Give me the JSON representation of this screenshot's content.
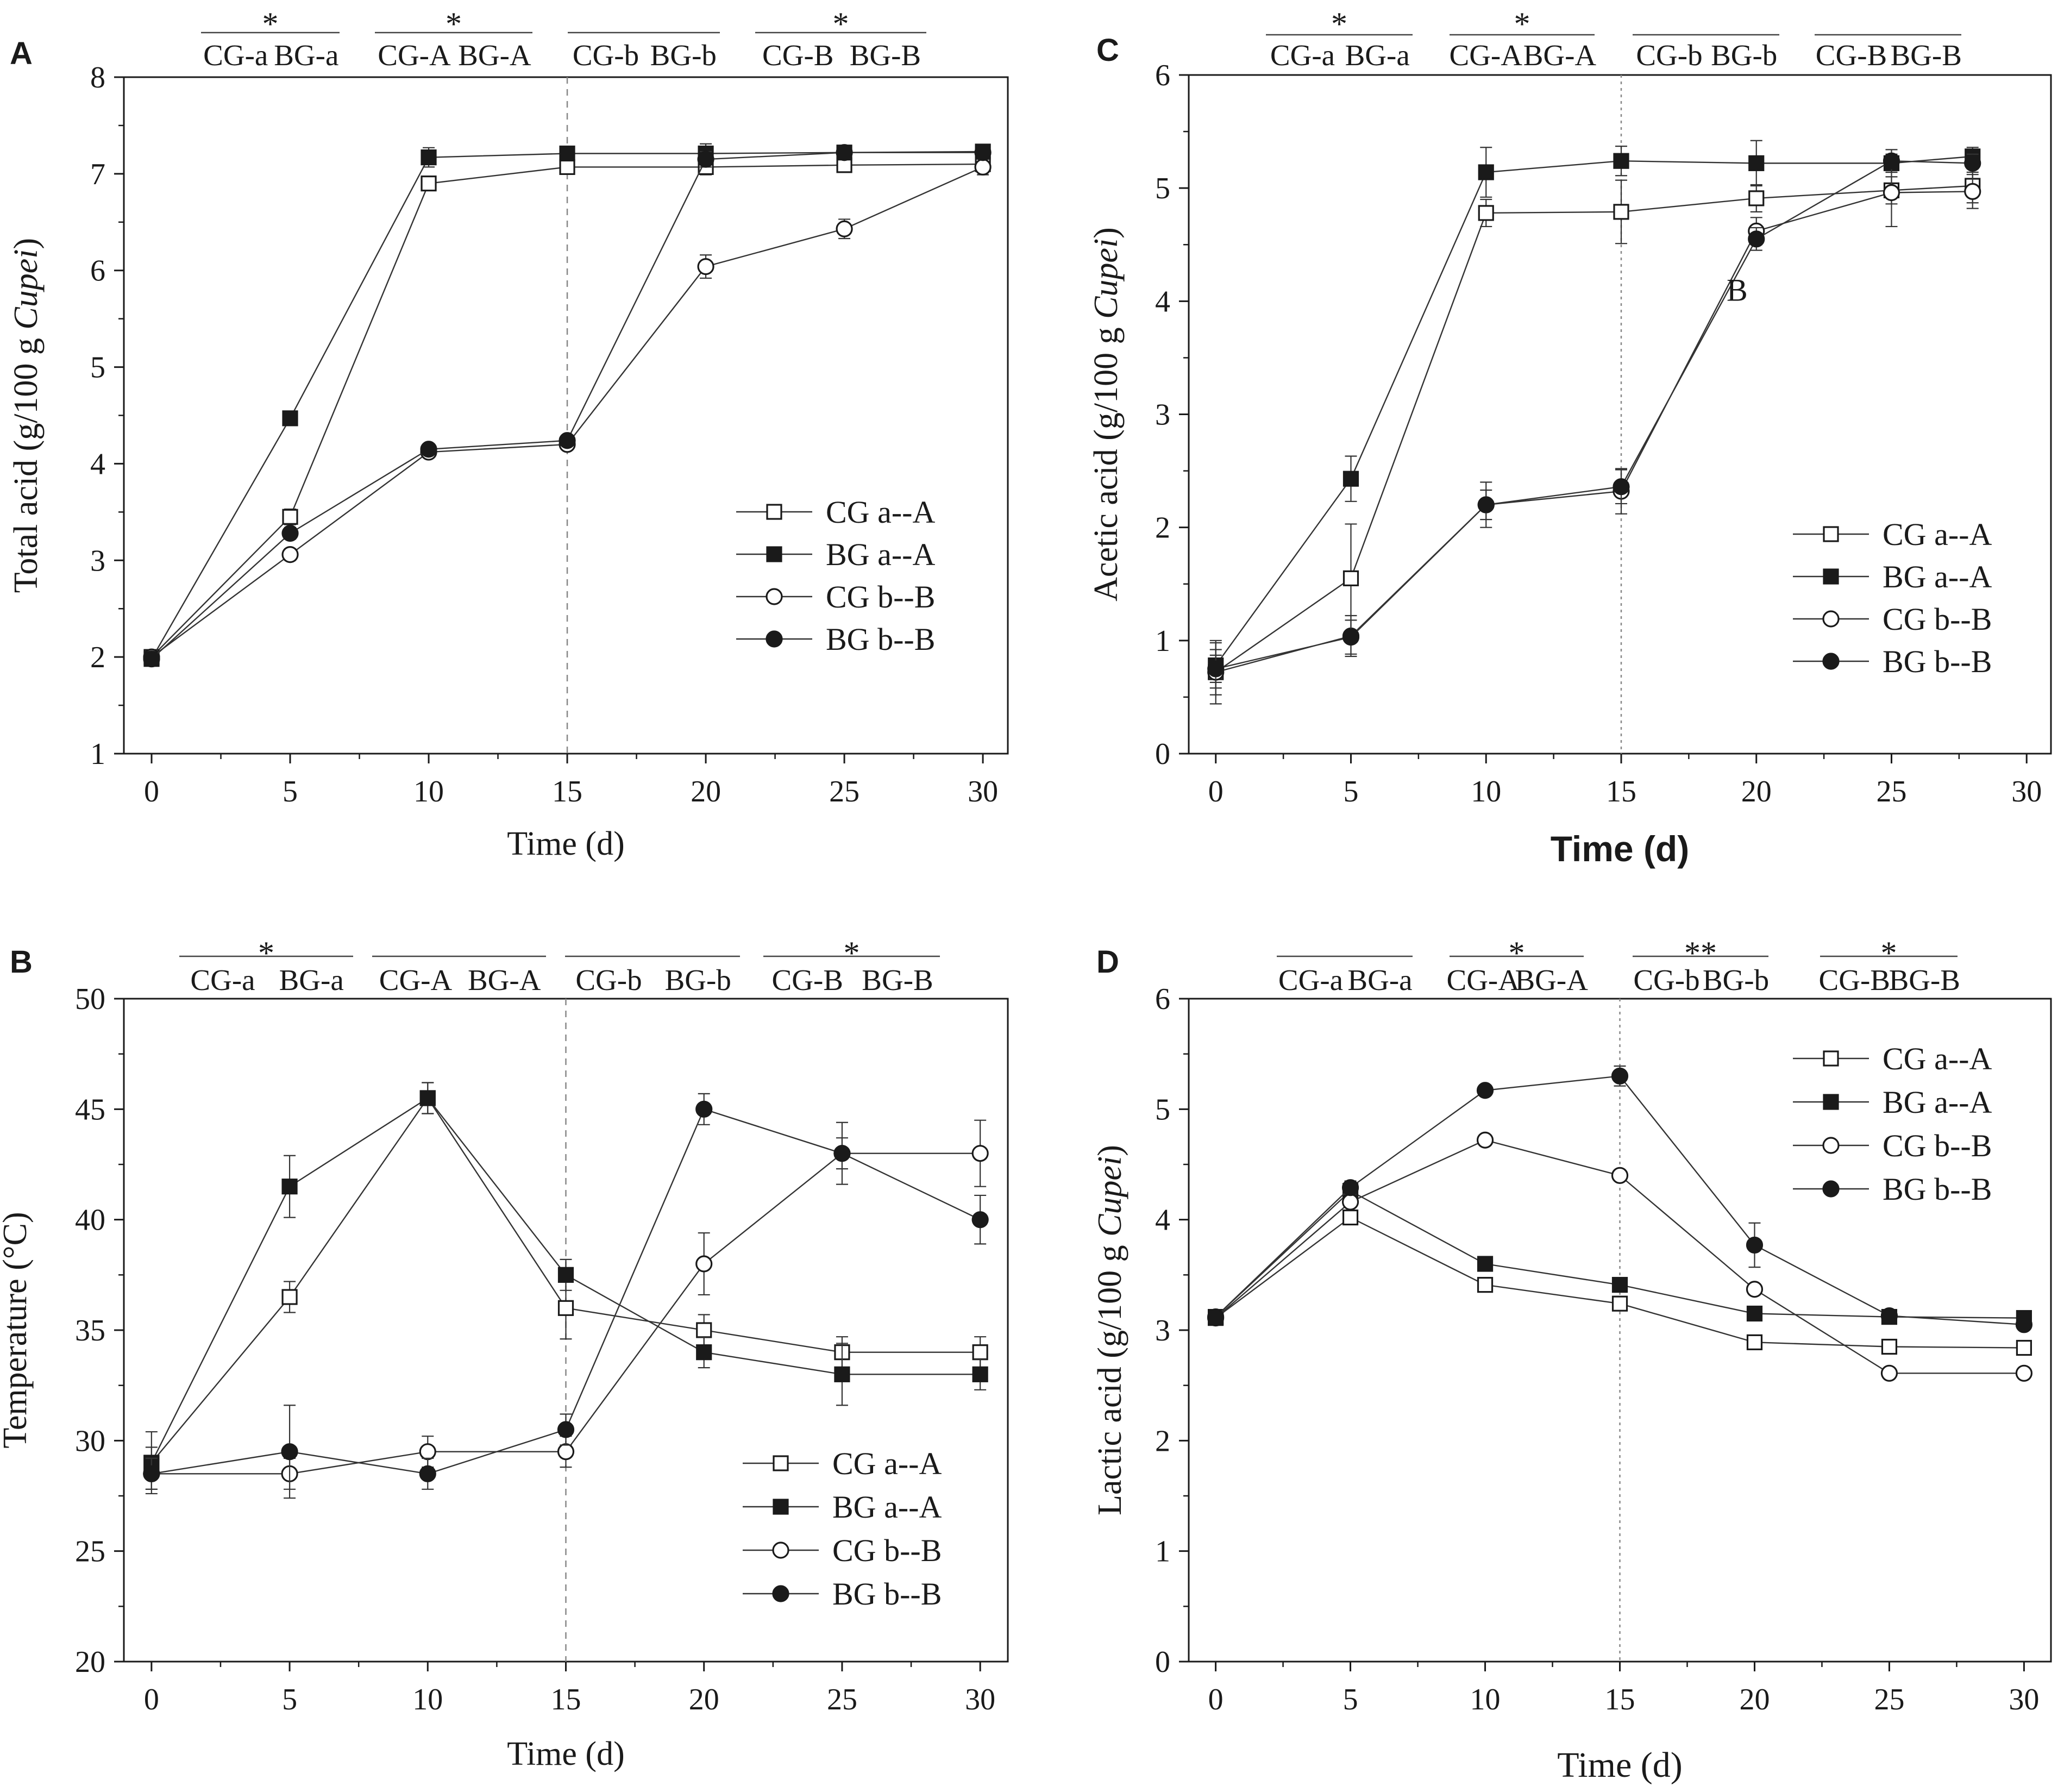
{
  "chart_data": [
    {
      "panel": "A",
      "type": "line",
      "title": "",
      "xlabel": "Time (d)",
      "ylabel_main": "Total acid (g/100 g ",
      "ylabel_italic": "Cupei",
      "ylabel_end": ")",
      "xlim": [
        -1,
        30.9
      ],
      "ylim": [
        1,
        8
      ],
      "xticks": [
        0,
        5,
        10,
        15,
        20,
        25,
        30
      ],
      "yticks": [
        1,
        2,
        3,
        4,
        5,
        6,
        7,
        8
      ],
      "divider_x": 15,
      "legend_position": "center-right",
      "comparisons": [
        {
          "left": "CG-a",
          "right": "BG-a",
          "mark": "*"
        },
        {
          "left": "CG-A",
          "right": "BG-A",
          "mark": "*"
        },
        {
          "left": "CG-b",
          "right": "BG-b",
          "mark": ""
        },
        {
          "left": "CG-B",
          "right": "BG-B",
          "mark": "*"
        }
      ],
      "series": [
        {
          "name": "CG a--A",
          "marker": "square-open",
          "x": [
            0,
            5,
            10,
            15,
            20,
            25,
            30
          ],
          "y": [
            2.0,
            3.45,
            6.9,
            7.07,
            7.07,
            7.09,
            7.1
          ],
          "err": [
            0.05,
            0.08,
            0.07,
            0.06,
            0.08,
            0.06,
            0.07
          ]
        },
        {
          "name": "BG a--A",
          "marker": "square-filled",
          "x": [
            0,
            5,
            10,
            15,
            20,
            25,
            30
          ],
          "y": [
            1.98,
            4.47,
            7.17,
            7.21,
            7.21,
            7.22,
            7.23
          ],
          "err": [
            0.05,
            0.07,
            0.1,
            0.06,
            0.1,
            0.06,
            0.05
          ]
        },
        {
          "name": "CG b--B",
          "marker": "circle-open",
          "x": [
            0,
            5,
            10,
            15,
            20,
            25,
            30
          ],
          "y": [
            2.0,
            3.06,
            4.12,
            4.2,
            6.04,
            6.43,
            7.07
          ],
          "err": [
            0.05,
            0.06,
            0.05,
            0.05,
            0.12,
            0.1,
            0.08
          ]
        },
        {
          "name": "BG b--B",
          "marker": "circle-filled",
          "x": [
            0,
            5,
            10,
            15,
            20,
            25,
            30
          ],
          "y": [
            1.98,
            3.28,
            4.15,
            4.24,
            7.15,
            7.22,
            7.22
          ],
          "err": [
            0.05,
            0.06,
            0.05,
            0.05,
            0.08,
            0.06,
            0.06
          ]
        }
      ]
    },
    {
      "panel": "C",
      "type": "line",
      "title": "",
      "xlabel": "Time (d)",
      "ylabel_main": "Acetic acid (g/100 g ",
      "ylabel_italic": "Cupei",
      "ylabel_end": ")",
      "xlim": [
        -1,
        30.9
      ],
      "ylim": [
        0,
        6
      ],
      "xticks": [
        0,
        5,
        10,
        15,
        20,
        25,
        30
      ],
      "yticks": [
        0,
        1,
        2,
        3,
        4,
        5,
        6
      ],
      "divider_x": 15,
      "legend_position": "lower-right",
      "annotation": {
        "text": "B",
        "x": 18.9,
        "y": 4.1
      },
      "comparisons": [
        {
          "left": "CG-a",
          "right": "BG-a",
          "mark": "*"
        },
        {
          "left": "CG-A",
          "right": "BG-A",
          "mark": "*"
        },
        {
          "left": "CG-b",
          "right": "BG-b",
          "mark": ""
        },
        {
          "left": "CG-B",
          "right": "BG-B",
          "mark": ""
        }
      ],
      "series": [
        {
          "name": "CG a--A",
          "marker": "square-open",
          "x": [
            0,
            5,
            10,
            15,
            20,
            25,
            28
          ],
          "y": [
            0.72,
            1.55,
            4.78,
            4.79,
            4.91,
            4.98,
            5.02
          ],
          "err": [
            0.28,
            0.48,
            0.12,
            0.28,
            0.12,
            0.12,
            0.15
          ]
        },
        {
          "name": "BG a--A",
          "marker": "square-filled",
          "x": [
            0,
            5,
            10,
            15,
            20,
            25,
            28
          ],
          "y": [
            0.78,
            2.43,
            5.14,
            5.24,
            5.22,
            5.22,
            5.28
          ],
          "err": [
            0.2,
            0.2,
            0.22,
            0.13,
            0.2,
            0.08,
            0.08
          ]
        },
        {
          "name": "CG b--B",
          "marker": "circle-open",
          "x": [
            0,
            5,
            10,
            15,
            20,
            25,
            28
          ],
          "y": [
            0.72,
            1.04,
            2.2,
            2.32,
            4.62,
            4.96,
            4.97
          ],
          "err": [
            0.2,
            0.18,
            0.2,
            0.2,
            0.12,
            0.3,
            0.15
          ]
        },
        {
          "name": "BG b--B",
          "marker": "circle-filled",
          "x": [
            0,
            5,
            10,
            15,
            20,
            25,
            28
          ],
          "y": [
            0.75,
            1.03,
            2.2,
            2.36,
            4.55,
            5.24,
            5.22
          ],
          "err": [
            0.12,
            0.15,
            0.13,
            0.15,
            0.1,
            0.1,
            0.08
          ]
        }
      ]
    },
    {
      "panel": "B",
      "type": "line",
      "title": "",
      "xlabel": "Time (d)",
      "ylabel_main": "Temperature (°C)",
      "ylabel_italic": "",
      "ylabel_end": "",
      "xlim": [
        -1,
        31
      ],
      "ylim": [
        20,
        50
      ],
      "xticks": [
        0,
        5,
        10,
        15,
        20,
        25,
        30
      ],
      "yticks": [
        20,
        25,
        30,
        35,
        40,
        45,
        50
      ],
      "divider_x": 15,
      "legend_position": "lower-right",
      "comparisons": [
        {
          "left": "CG-a",
          "right": "BG-a",
          "mark": "*"
        },
        {
          "left": "CG-A",
          "right": "BG-A",
          "mark": ""
        },
        {
          "left": "CG-b",
          "right": "BG-b",
          "mark": ""
        },
        {
          "left": "CG-B",
          "right": "BG-B",
          "mark": "*"
        }
      ],
      "series": [
        {
          "name": "CG a--A",
          "marker": "square-open",
          "x": [
            0,
            5,
            10,
            15,
            20,
            25,
            30
          ],
          "y": [
            29.0,
            36.5,
            45.5,
            36.0,
            35.0,
            34.0,
            34.0
          ],
          "err": [
            1.4,
            0.7,
            0.7,
            1.4,
            0.7,
            0.7,
            0.7
          ]
        },
        {
          "name": "BG a--A",
          "marker": "square-filled",
          "x": [
            0,
            5,
            10,
            15,
            20,
            25,
            30
          ],
          "y": [
            29.0,
            41.5,
            45.5,
            37.5,
            34.0,
            33.0,
            33.0
          ],
          "err": [
            0.7,
            1.4,
            0.7,
            0.7,
            0.7,
            1.4,
            0.7
          ]
        },
        {
          "name": "CG b--B",
          "marker": "circle-open",
          "x": [
            0,
            5,
            10,
            15,
            20,
            25,
            30
          ],
          "y": [
            28.5,
            28.5,
            29.5,
            29.5,
            38.0,
            43.0,
            43.0
          ],
          "err": [
            0.7,
            0.7,
            0.7,
            0.7,
            1.4,
            1.4,
            1.5
          ]
        },
        {
          "name": "BG b--B",
          "marker": "circle-filled",
          "x": [
            0,
            5,
            10,
            15,
            20,
            25,
            30
          ],
          "y": [
            28.5,
            29.5,
            28.5,
            30.5,
            45.0,
            43.0,
            40.0
          ],
          "err": [
            0.7,
            2.1,
            0.7,
            0.7,
            0.7,
            0.7,
            1.1
          ]
        }
      ]
    },
    {
      "panel": "D",
      "type": "line",
      "title": "",
      "xlabel": "Time (d)",
      "ylabel_main": "Lactic acid (g/100 g ",
      "ylabel_italic": "Cupei",
      "ylabel_end": ")",
      "xlim": [
        -1,
        31
      ],
      "ylim": [
        0,
        6
      ],
      "xticks": [
        0,
        5,
        10,
        15,
        20,
        25,
        30
      ],
      "yticks": [
        0,
        1,
        2,
        3,
        4,
        5,
        6
      ],
      "divider_x": 15,
      "legend_position": "top-right",
      "comparisons": [
        {
          "left": "CG-a",
          "right": "BG-a",
          "mark": ""
        },
        {
          "left": "CG-A",
          "right": "BG-A",
          "mark": "*"
        },
        {
          "left": "CG-b",
          "right": "BG-b",
          "mark": "**"
        },
        {
          "left": "CG-B",
          "right": "BG-B",
          "mark": "*"
        }
      ],
      "series": [
        {
          "name": "CG a--A",
          "marker": "square-open",
          "x": [
            0,
            5,
            10,
            15,
            20,
            25,
            30
          ],
          "y": [
            3.11,
            4.02,
            3.41,
            3.24,
            2.89,
            2.85,
            2.84
          ],
          "err": [
            0.04,
            0.05,
            0.04,
            0.04,
            0.04,
            0.04,
            0.04
          ]
        },
        {
          "name": "BG a--A",
          "marker": "square-filled",
          "x": [
            0,
            5,
            10,
            15,
            20,
            25,
            30
          ],
          "y": [
            3.12,
            4.26,
            3.6,
            3.41,
            3.15,
            3.12,
            3.11
          ],
          "err": [
            0.04,
            0.06,
            0.04,
            0.04,
            0.04,
            0.04,
            0.04
          ]
        },
        {
          "name": "CG b--B",
          "marker": "circle-open",
          "x": [
            0,
            5,
            10,
            15,
            20,
            25,
            30
          ],
          "y": [
            3.11,
            4.16,
            4.72,
            4.4,
            3.37,
            2.61,
            2.61
          ],
          "err": [
            0.04,
            0.05,
            0.05,
            0.05,
            0.05,
            0.04,
            0.04
          ]
        },
        {
          "name": "BG b--B",
          "marker": "circle-filled",
          "x": [
            0,
            5,
            10,
            15,
            20,
            25,
            30
          ],
          "y": [
            3.12,
            4.29,
            5.17,
            5.3,
            3.77,
            3.13,
            3.05
          ],
          "err": [
            0.04,
            0.06,
            0.05,
            0.09,
            0.2,
            0.04,
            0.05
          ]
        }
      ]
    }
  ]
}
